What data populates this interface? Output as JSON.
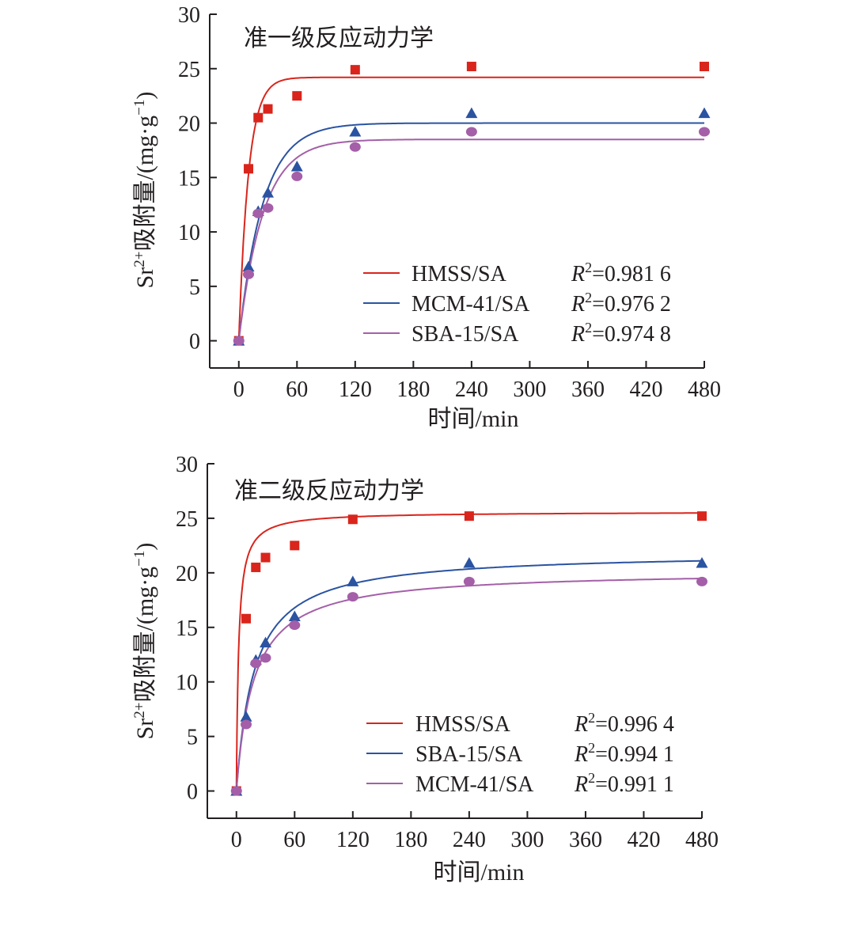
{
  "chart_data": [
    {
      "type": "scatter",
      "title": "准一级反应动力学",
      "xlabel": "时间/min",
      "ylabel": "Sr²⁺吸附量/(mg·g⁻¹)",
      "ylabel_parts": {
        "pre": "Sr",
        "sup1": "2+",
        "mid": "吸附量/(mg·g",
        "sup2": "−1",
        "post": ")"
      },
      "x_ticks": [
        0,
        60,
        120,
        180,
        240,
        300,
        360,
        420,
        480
      ],
      "y_ticks": [
        0,
        5,
        10,
        15,
        20,
        25,
        30
      ],
      "xlim": [
        -30,
        480
      ],
      "ylim": [
        -2.5,
        30
      ],
      "grid": false,
      "legend_position": "bottom-right",
      "series": [
        {
          "name": "HMSS/SA",
          "r2_label": "R",
          "r2_sup": "2",
          "r2_value": "=0.981 6",
          "color": "#d9251c",
          "marker": "square",
          "x": [
            0,
            10,
            20,
            30,
            60,
            120,
            240,
            480
          ],
          "y": [
            0,
            15.8,
            20.5,
            21.3,
            22.5,
            24.9,
            25.2,
            25.2
          ],
          "fit_model": "pseudo-first-order",
          "qe": 24.2,
          "k": 0.1
        },
        {
          "name": "MCM-41/SA",
          "r2_label": "R",
          "r2_sup": "2",
          "r2_value": "=0.976 2",
          "color": "#2a53a1",
          "marker": "triangle",
          "x": [
            0,
            10,
            20,
            30,
            60,
            120,
            240,
            480
          ],
          "y": [
            0,
            6.8,
            11.9,
            13.6,
            16.0,
            19.2,
            20.9,
            20.9
          ],
          "fit_model": "pseudo-first-order",
          "qe": 20.0,
          "k": 0.04
        },
        {
          "name": "SBA-15/SA",
          "r2_label": "R",
          "r2_sup": "2",
          "r2_value": "=0.974 8",
          "color": "#a45fa8",
          "marker": "circle",
          "x": [
            0,
            10,
            20,
            30,
            60,
            120,
            240,
            480
          ],
          "y": [
            0,
            6.1,
            11.7,
            12.2,
            15.1,
            17.8,
            19.2,
            19.2
          ],
          "fit_model": "pseudo-first-order",
          "qe": 18.5,
          "k": 0.04
        }
      ]
    },
    {
      "type": "scatter",
      "title": "准二级反应动力学",
      "xlabel": "时间/min",
      "ylabel": "Sr²⁺吸附量/(mg·g⁻¹)",
      "ylabel_parts": {
        "pre": "Sr",
        "sup1": "2+",
        "mid": "吸附量/(mg·g",
        "sup2": "−1",
        "post": ")"
      },
      "x_ticks": [
        0,
        60,
        120,
        180,
        240,
        300,
        360,
        420,
        480
      ],
      "y_ticks": [
        0,
        5,
        10,
        15,
        20,
        25,
        30
      ],
      "xlim": [
        -30,
        480
      ],
      "ylim": [
        -2.5,
        30
      ],
      "grid": false,
      "legend_position": "bottom-right",
      "series": [
        {
          "name": "HMSS/SA",
          "r2_label": "R",
          "r2_sup": "2",
          "r2_value": "=0.996 4",
          "color": "#d9251c",
          "marker": "square",
          "x": [
            0,
            10,
            20,
            30,
            60,
            120,
            240,
            480
          ],
          "y": [
            0,
            15.8,
            20.5,
            21.4,
            22.5,
            24.9,
            25.2,
            25.2
          ],
          "fit_model": "pseudo-second-order",
          "qe": 25.6,
          "k": 0.0175
        },
        {
          "name": "SBA-15/SA",
          "r2_label": "R",
          "r2_sup": "2",
          "r2_value": "=0.994 1",
          "color": "#2a53a1",
          "marker": "triangle",
          "x": [
            0,
            10,
            20,
            30,
            60,
            120,
            240,
            480
          ],
          "y": [
            0,
            6.8,
            12.0,
            13.6,
            16.0,
            19.2,
            20.9,
            20.9
          ],
          "fit_model": "pseudo-second-order",
          "qe": 21.9,
          "k": 0.0025
        },
        {
          "name": "MCM-41/SA",
          "r2_label": "R",
          "r2_sup": "2",
          "r2_value": "=0.991 1",
          "color": "#a45fa8",
          "marker": "circle",
          "x": [
            0,
            10,
            20,
            30,
            60,
            120,
            240,
            480
          ],
          "y": [
            0,
            6.1,
            11.7,
            12.2,
            15.2,
            17.8,
            19.2,
            19.2
          ],
          "fit_model": "pseudo-second-order",
          "qe": 20.2,
          "k": 0.0028
        }
      ]
    }
  ]
}
